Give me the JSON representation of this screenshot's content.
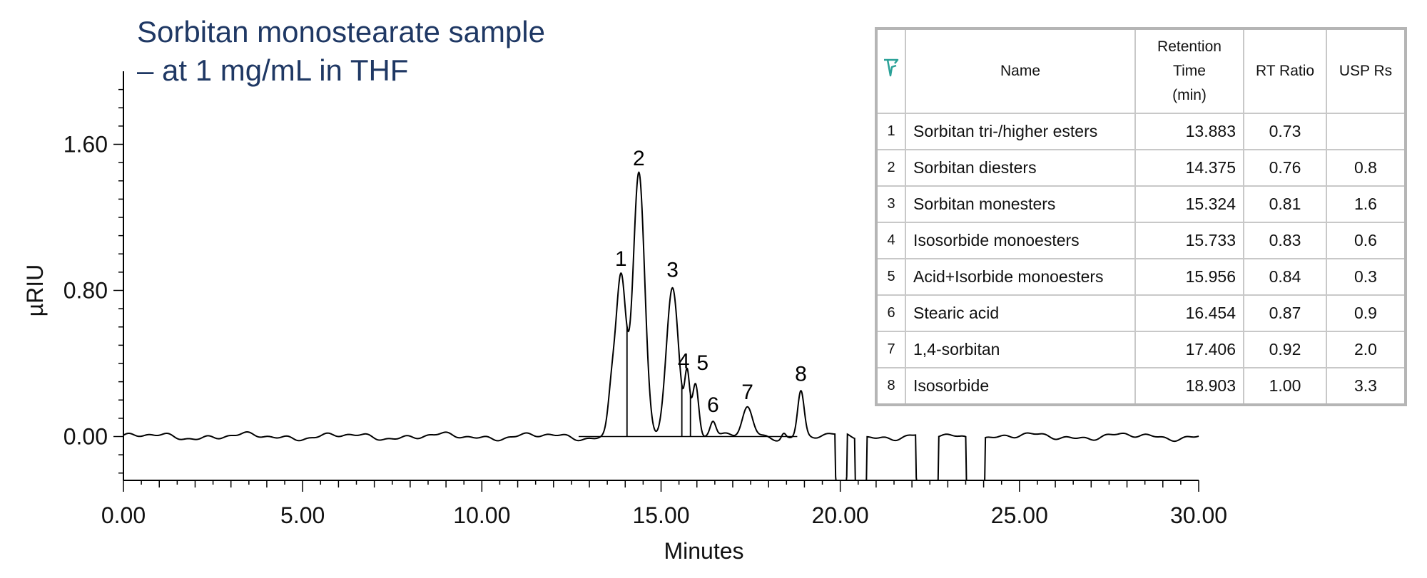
{
  "title_lines": [
    "Sorbitan monostearate sample",
    "– at 1 mg/mL in THF"
  ],
  "chart_data": {
    "type": "line",
    "xlabel": "Minutes",
    "ylabel": "µRIU",
    "xlim": [
      0,
      30
    ],
    "ylim": [
      -0.24,
      2.0
    ],
    "x_ticks": [
      "0.00",
      "5.00",
      "10.00",
      "15.00",
      "20.00",
      "25.00",
      "30.00"
    ],
    "y_ticks": [
      "1.60",
      "0.80",
      "0.00"
    ],
    "line_color": "#000000",
    "peaks": [
      {
        "label": "1",
        "rt": 13.88,
        "height": 0.88,
        "width": 0.14
      },
      {
        "label": "2",
        "rt": 14.38,
        "height": 1.43,
        "width": 0.16
      },
      {
        "label": "3",
        "rt": 15.32,
        "height": 0.82,
        "width": 0.17
      },
      {
        "label": "4",
        "rt": 15.73,
        "height": 0.32,
        "width": 0.07
      },
      {
        "label": "5",
        "rt": 15.96,
        "height": 0.31,
        "width": 0.09
      },
      {
        "label": "6",
        "rt": 16.45,
        "height": 0.08,
        "width": 0.08
      },
      {
        "label": "7",
        "rt": 17.41,
        "height": 0.15,
        "width": 0.14
      },
      {
        "label": "8",
        "rt": 18.9,
        "height": 0.25,
        "width": 0.09
      }
    ],
    "negative_dips": [
      {
        "from": 19.85,
        "to": 20.2
      },
      {
        "from": 20.4,
        "to": 20.75
      },
      {
        "from": 22.1,
        "to": 22.75
      },
      {
        "from": 23.5,
        "to": 24.05
      }
    ]
  },
  "table": {
    "icon": "peak-table-icon",
    "icon_color": "#2aa198",
    "headers": [
      "Name",
      "Retention Time (min)",
      "RT Ratio",
      "USP Rs"
    ],
    "header_lines": {
      "rt": [
        "Retention",
        "Time",
        "(min)"
      ]
    },
    "rows": [
      {
        "idx": "1",
        "name": "Sorbitan tri-/higher esters",
        "rt": "13.883",
        "ratio": "0.73",
        "rs": ""
      },
      {
        "idx": "2",
        "name": "Sorbitan diesters",
        "rt": "14.375",
        "ratio": "0.76",
        "rs": "0.8"
      },
      {
        "idx": "3",
        "name": "Sorbitan monesters",
        "rt": "15.324",
        "ratio": "0.81",
        "rs": "1.6"
      },
      {
        "idx": "4",
        "name": "Isosorbide monoesters",
        "rt": "15.733",
        "ratio": "0.83",
        "rs": "0.6"
      },
      {
        "idx": "5",
        "name": "Acid+Isorbide monoesters",
        "rt": "15.956",
        "ratio": "0.84",
        "rs": "0.3"
      },
      {
        "idx": "6",
        "name": "Stearic acid",
        "rt": "16.454",
        "ratio": "0.87",
        "rs": "0.9"
      },
      {
        "idx": "7",
        "name": "1,4-sorbitan",
        "rt": "17.406",
        "ratio": "0.92",
        "rs": "2.0"
      },
      {
        "idx": "8",
        "name": "Isosorbide",
        "rt": "18.903",
        "ratio": "1.00",
        "rs": "3.3"
      }
    ]
  }
}
